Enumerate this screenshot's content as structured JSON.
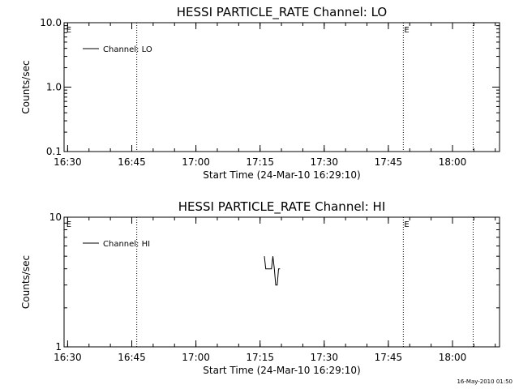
{
  "footer": {
    "timestamp": "16-May-2010 01:50"
  },
  "chart_data": [
    {
      "type": "line",
      "title": "HESSI PARTICLE_RATE Channel: LO",
      "xlabel": "Start Time (24-Mar-10 16:29:10)",
      "ylabel": "Counts/sec",
      "y_scale": "log",
      "ylim": [
        0.1,
        10.0
      ],
      "y_ticks": [
        "0.1",
        "1.0",
        "10.0"
      ],
      "xlim": [
        "16:29:10",
        "18:11:00"
      ],
      "x_ticks": [
        "16:30",
        "16:45",
        "17:00",
        "17:15",
        "17:30",
        "17:45",
        "18:00"
      ],
      "legend": {
        "position": "top-left",
        "entries": [
          "Channel: LO"
        ]
      },
      "flag_markers": [
        {
          "time": "16:29:30",
          "label": "E"
        },
        {
          "time": "17:48:30",
          "label": "E"
        }
      ],
      "vertical_lines": [
        "16:46:10",
        "17:48:30",
        "18:04:50"
      ],
      "series": [
        {
          "name": "Channel: LO",
          "x": [],
          "values": []
        }
      ]
    },
    {
      "type": "line",
      "title": "HESSI PARTICLE_RATE Channel: HI",
      "xlabel": "Start Time (24-Mar-10 16:29:10)",
      "ylabel": "Counts/sec",
      "y_scale": "log",
      "ylim": [
        1,
        10
      ],
      "y_ticks": [
        "1",
        "10"
      ],
      "xlim": [
        "16:29:10",
        "18:11:00"
      ],
      "x_ticks": [
        "16:30",
        "16:45",
        "17:00",
        "17:15",
        "17:30",
        "17:45",
        "18:00"
      ],
      "legend": {
        "position": "top-left",
        "entries": [
          "Channel: HI"
        ]
      },
      "flag_markers": [
        {
          "time": "16:29:30",
          "label": "E"
        },
        {
          "time": "17:48:30",
          "label": "E"
        }
      ],
      "vertical_lines": [
        "16:46:10",
        "17:48:30",
        "18:04:50"
      ],
      "series": [
        {
          "name": "Channel: HI",
          "x": [
            "17:16:00",
            "17:16:20",
            "17:17:40",
            "17:18:00",
            "17:18:20",
            "17:18:40",
            "17:19:00",
            "17:19:20",
            "17:19:40"
          ],
          "values": [
            5.0,
            4.0,
            4.0,
            5.0,
            4.0,
            3.0,
            3.0,
            4.0,
            4.0
          ]
        }
      ]
    }
  ]
}
